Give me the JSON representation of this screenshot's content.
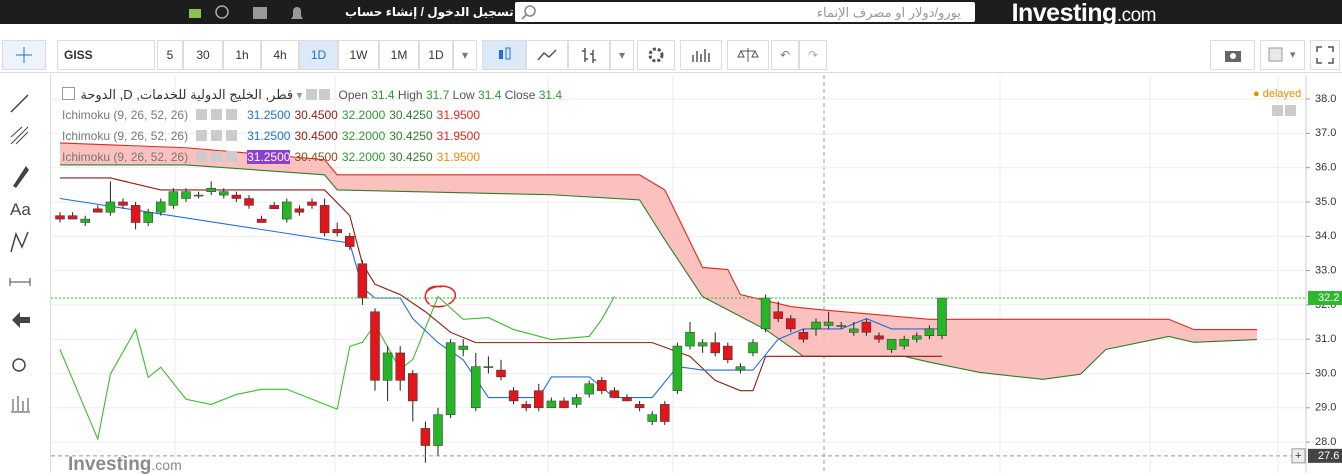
{
  "header": {
    "logo": "Investing",
    "logo_suffix": ".com",
    "search_placeholder": "يورو/دولار او مصرف الإنماء",
    "login": "تسجيل الدخول / إنشاء حساب"
  },
  "toolbar": {
    "symbol": "GISS",
    "intervals": [
      "5",
      "30",
      "1h",
      "4h",
      "1D",
      "1W",
      "1M"
    ],
    "chart_interval": "1D"
  },
  "left_tools": {
    "text_tool": "Aa"
  },
  "legend": {
    "title": "قطر, الخليج الدولية للخدمات, D, الدوحة",
    "ohlc": [
      {
        "label": "Open",
        "value": 31.4
      },
      {
        "label": "High",
        "value": 31.7
      },
      {
        "label": "Low",
        "value": 31.4
      },
      {
        "label": "Close",
        "value": 31.4
      }
    ],
    "status": "delayed"
  },
  "indicators": [
    {
      "name": "Ichimoku (9, 26, 52, 26)",
      "values": [
        "31.2500",
        "30.4500",
        "32.2000",
        "30.4250",
        "31.9500"
      ]
    },
    {
      "name": "Ichimoku (9, 26, 52, 26)",
      "values": [
        "31.2500",
        "30.4500",
        "32.2000",
        "30.4250",
        "31.9500"
      ]
    },
    {
      "name": "Ichimoku (9, 26, 52, 26)",
      "values": [
        "31.2500",
        "30.4500",
        "32.2000",
        "30.4250",
        "31.9500"
      ]
    }
  ],
  "watermark": {
    "logo": "Investing",
    "logo_suffix": ".com"
  },
  "chart_data": {
    "type": "candlestick",
    "open": [
      34.6,
      34.6,
      34.4,
      34.8,
      34.7,
      35.0,
      34.9,
      34.4,
      34.7,
      34.9,
      35.1,
      35.2,
      35.3,
      35.2,
      35.2,
      35.1,
      34.5,
      34.9,
      34.5,
      34.8,
      35.0,
      34.9,
      34.2,
      34.0,
      33.2,
      31.8,
      29.8,
      30.6,
      30.0,
      28.4,
      27.9,
      28.8,
      30.7,
      29.0,
      30.2,
      30.1,
      29.5,
      29.1,
      29.5,
      29.0,
      29.2,
      29.1,
      29.4,
      29.8,
      29.5,
      29.3,
      29.1,
      28.6,
      29.1,
      29.5,
      30.8,
      30.8,
      30.9,
      30.8,
      30.1,
      30.6,
      31.3,
      31.8,
      31.6,
      31.2,
      31.3,
      31.4,
      31.4,
      31.2,
      31.5,
      31.1,
      30.7,
      30.8,
      31.0,
      31.1,
      31.1
    ],
    "high": [
      34.7,
      34.7,
      34.6,
      34.9,
      35.6,
      35.1,
      35.0,
      34.8,
      35.1,
      35.4,
      35.4,
      35.3,
      35.6,
      35.4,
      35.3,
      35.2,
      34.6,
      35.0,
      35.1,
      34.9,
      35.1,
      35.1,
      34.4,
      34.1,
      33.3,
      31.9,
      30.8,
      30.8,
      30.1,
      28.6,
      29.0,
      31.0,
      31.0,
      30.6,
      30.5,
      30.4,
      29.6,
      29.2,
      29.7,
      29.3,
      29.3,
      29.4,
      29.8,
      29.9,
      29.6,
      29.4,
      29.2,
      28.9,
      29.2,
      30.9,
      31.5,
      31.0,
      31.2,
      30.9,
      30.3,
      31.0,
      32.3,
      32.1,
      31.7,
      31.3,
      31.6,
      31.8,
      31.5,
      31.5,
      31.6,
      31.2,
      31.0,
      31.1,
      31.2,
      31.4,
      32.2
    ],
    "low": [
      34.4,
      34.5,
      34.3,
      34.7,
      34.6,
      34.8,
      34.2,
      34.3,
      34.6,
      34.8,
      35.0,
      35.1,
      35.2,
      35.1,
      35.0,
      34.8,
      34.4,
      34.8,
      34.4,
      34.6,
      34.8,
      34.0,
      34.0,
      33.6,
      32.0,
      29.5,
      29.2,
      29.5,
      28.6,
      27.4,
      27.6,
      28.7,
      30.5,
      28.9,
      30.0,
      29.8,
      29.1,
      28.9,
      28.9,
      29.0,
      29.0,
      29.0,
      29.3,
      29.4,
      29.3,
      29.2,
      28.9,
      28.5,
      28.5,
      29.4,
      30.7,
      30.6,
      30.5,
      30.3,
      30.0,
      30.5,
      31.2,
      31.5,
      31.2,
      30.9,
      31.1,
      31.3,
      31.3,
      31.1,
      31.1,
      30.9,
      30.6,
      30.7,
      30.9,
      31.0,
      31.0
    ],
    "close": [
      34.5,
      34.5,
      34.5,
      34.7,
      35.0,
      34.9,
      34.4,
      34.7,
      35.0,
      35.3,
      35.3,
      35.2,
      35.4,
      35.3,
      35.1,
      34.9,
      34.4,
      34.8,
      35.0,
      34.7,
      34.9,
      34.1,
      34.1,
      33.7,
      32.2,
      29.8,
      30.6,
      29.8,
      29.2,
      27.9,
      28.8,
      30.9,
      30.8,
      30.2,
      30.2,
      29.9,
      29.2,
      29.0,
      29.0,
      29.2,
      29.0,
      29.3,
      29.7,
      29.5,
      29.3,
      29.2,
      29.0,
      28.8,
      28.6,
      30.8,
      31.2,
      30.9,
      30.6,
      30.4,
      30.2,
      30.9,
      32.2,
      31.6,
      31.3,
      31.0,
      31.5,
      31.5,
      31.4,
      31.3,
      31.2,
      31.0,
      31.0,
      31.0,
      31.1,
      31.3,
      32.2
    ],
    "up_color": "#26b526",
    "down_color": "#e0161a",
    "ichimoku": {
      "tenkan": {
        "color": "#1f6fe0",
        "x": [
          0,
          23,
          24,
          25,
          27,
          28,
          30,
          32,
          34,
          38,
          39,
          42,
          44,
          47,
          49,
          51,
          55,
          57,
          59,
          62,
          64,
          66,
          70
        ],
        "values": [
          35.1,
          33.8,
          32.5,
          32.2,
          32.2,
          31.6,
          30.9,
          30.4,
          29.3,
          29.3,
          29.9,
          29.9,
          29.3,
          29.3,
          30.2,
          30.1,
          30.1,
          31.0,
          31.3,
          31.3,
          31.6,
          31.3,
          31.3
        ]
      },
      "kijun": {
        "color": "#8c1c13",
        "x": [
          0,
          4,
          8,
          21,
          23,
          24,
          25,
          27,
          29,
          31,
          33,
          47,
          50,
          52,
          54,
          55,
          56,
          70
        ],
        "values": [
          35.7,
          35.7,
          35.35,
          35.35,
          34.6,
          33.2,
          32.6,
          32.3,
          31.8,
          31.2,
          30.9,
          30.9,
          30.5,
          29.8,
          29.5,
          29.5,
          30.5,
          30.5
        ]
      },
      "chikou": {
        "color": "#3dbb2f",
        "x": [
          0,
          1,
          3,
          4,
          6,
          7,
          8,
          10,
          12,
          14,
          16,
          18,
          20,
          22,
          23,
          24,
          25,
          27,
          28,
          30,
          32,
          34,
          36,
          39,
          42,
          43,
          44
        ],
        "values": [
          30.7,
          29.83,
          28.09,
          29.98,
          31.28,
          29.89,
          30.18,
          29.25,
          29.1,
          29.39,
          29.54,
          29.54,
          29.25,
          28.96,
          30.79,
          30.91,
          31.43,
          30.12,
          30.41,
          32.24,
          31.58,
          31.63,
          31.28,
          30.99,
          31.08,
          31.58,
          32.24
        ]
      },
      "span_a": {
        "color": "#2e7d2a",
        "x": [
          0,
          10,
          21,
          22,
          39,
          46,
          48,
          51,
          56,
          59,
          67,
          69,
          73,
          78,
          81,
          83,
          88,
          90,
          95
        ],
        "values": [
          36.08,
          36.08,
          35.79,
          35.35,
          35.21,
          35.06,
          33.9,
          32.24,
          31.28,
          30.5,
          30.5,
          30.33,
          30.03,
          29.83,
          29.98,
          30.7,
          31.08,
          30.91,
          30.99
        ]
      },
      "span_b": {
        "color": "#e0281e",
        "x": [
          0,
          10,
          21,
          22,
          34,
          46,
          48,
          51,
          53,
          54,
          58,
          60,
          69,
          88,
          90,
          95
        ],
        "values": [
          36.72,
          36.58,
          36.23,
          35.79,
          35.79,
          35.79,
          35.35,
          33.09,
          33.03,
          32.3,
          31.95,
          31.87,
          31.58,
          31.58,
          31.28,
          31.28
        ]
      },
      "cloud_color": "#f9b6b4"
    },
    "last_price": 32.2,
    "last_price_color": "#2eb82e",
    "crosshair_price": 27.6,
    "ylim": [
      27.1,
      38.7
    ],
    "yticks": [
      {
        "value": 28,
        "label": "28.0"
      },
      {
        "value": 29,
        "label": "29.0"
      },
      {
        "value": 30,
        "label": "30.0"
      },
      {
        "value": 31,
        "label": "31.0"
      },
      {
        "value": 32,
        "label": "32.0"
      },
      {
        "value": 33,
        "label": "33.0"
      },
      {
        "value": 34,
        "label": "34.0"
      },
      {
        "value": 35,
        "label": "35.0"
      },
      {
        "value": 36,
        "label": "36.0"
      },
      {
        "value": 37,
        "label": "37.0"
      },
      {
        "value": 38,
        "label": "38.0"
      }
    ],
    "grid": true
  }
}
